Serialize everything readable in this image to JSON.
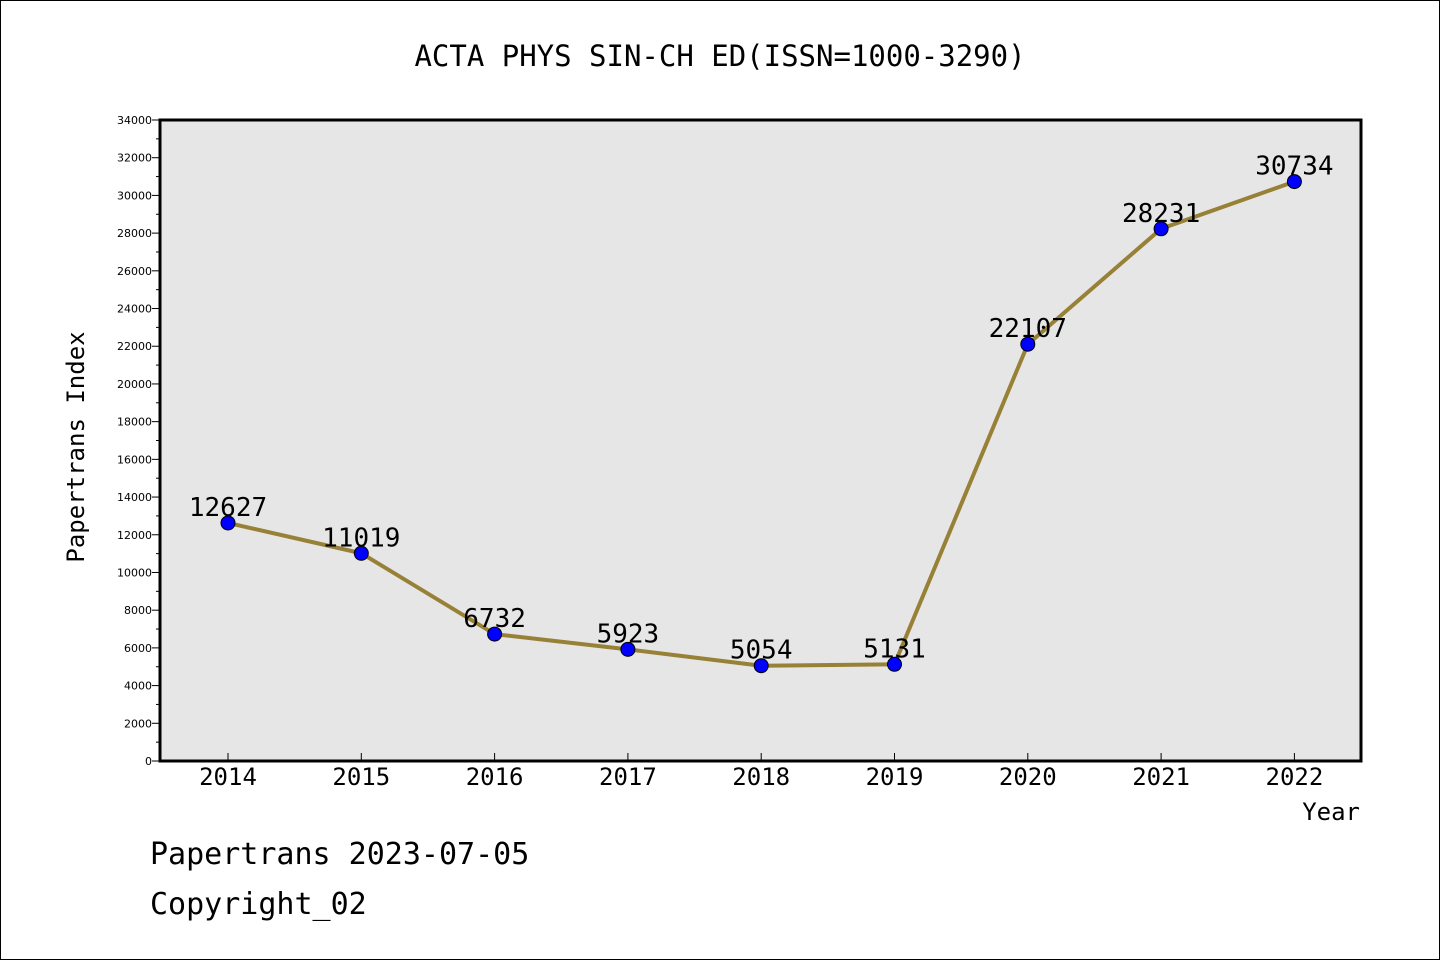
{
  "chart_data": {
    "type": "line",
    "title": "ACTA PHYS SIN-CH ED(ISSN=1000-3290)",
    "xlabel": "Year",
    "ylabel": "Papertrans Index",
    "categories": [
      "2014",
      "2015",
      "2016",
      "2017",
      "2018",
      "2019",
      "2020",
      "2021",
      "2022"
    ],
    "series": [
      {
        "values": [
          12627,
          11019,
          6732,
          5923,
          5054,
          5131,
          22107,
          28231,
          30734
        ]
      }
    ],
    "ylim": [
      0,
      34000
    ],
    "yticks": [
      0,
      2000,
      4000,
      6000,
      8000,
      10000,
      12000,
      14000,
      16000,
      18000,
      20000,
      22000,
      24000,
      26000,
      28000,
      30000,
      32000,
      34000
    ],
    "grid": false,
    "data_labels": true,
    "colors": {
      "line": "#978137",
      "marker": "#0000ff",
      "plot_bg": "#e6e6e6"
    }
  },
  "footer": {
    "date_line": "Papertrans 2023-07-05",
    "copyright": "Copyright_02"
  }
}
